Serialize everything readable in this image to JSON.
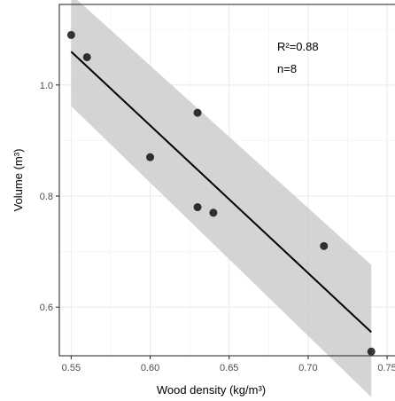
{
  "chart_data": {
    "type": "scatter",
    "xlabel": "Wood density (kg/m³)",
    "ylabel": "Volume (m³)",
    "xlim": [
      0.5425,
      0.755
    ],
    "ylim": [
      0.5125,
      1.145
    ],
    "x_ticks": [
      {
        "value": 0.55,
        "label": "0.55"
      },
      {
        "value": 0.6,
        "label": "0.60"
      },
      {
        "value": 0.65,
        "label": "0.65"
      },
      {
        "value": 0.7,
        "label": "0.70"
      },
      {
        "value": 0.75,
        "label": "0.75"
      }
    ],
    "y_ticks": [
      {
        "value": 0.6,
        "label": "0.6"
      },
      {
        "value": 0.8,
        "label": "0.8"
      },
      {
        "value": 1.0,
        "label": "1.0"
      }
    ],
    "grid": true,
    "points": [
      {
        "x": 0.55,
        "y": 1.09
      },
      {
        "x": 0.56,
        "y": 1.05
      },
      {
        "x": 0.6,
        "y": 0.87
      },
      {
        "x": 0.63,
        "y": 0.95
      },
      {
        "x": 0.63,
        "y": 0.78
      },
      {
        "x": 0.64,
        "y": 0.77
      },
      {
        "x": 0.71,
        "y": 0.71
      },
      {
        "x": 0.74,
        "y": 0.52
      }
    ],
    "fit": {
      "x": [
        0.55,
        0.74
      ],
      "y": [
        1.06,
        0.555
      ],
      "band_upper": [
        1.163,
        0.676
      ],
      "band_lower": [
        0.962,
        0.438
      ]
    },
    "annotations": [
      {
        "text": "R²=0.88"
      },
      {
        "text": "n=8"
      }
    ]
  }
}
